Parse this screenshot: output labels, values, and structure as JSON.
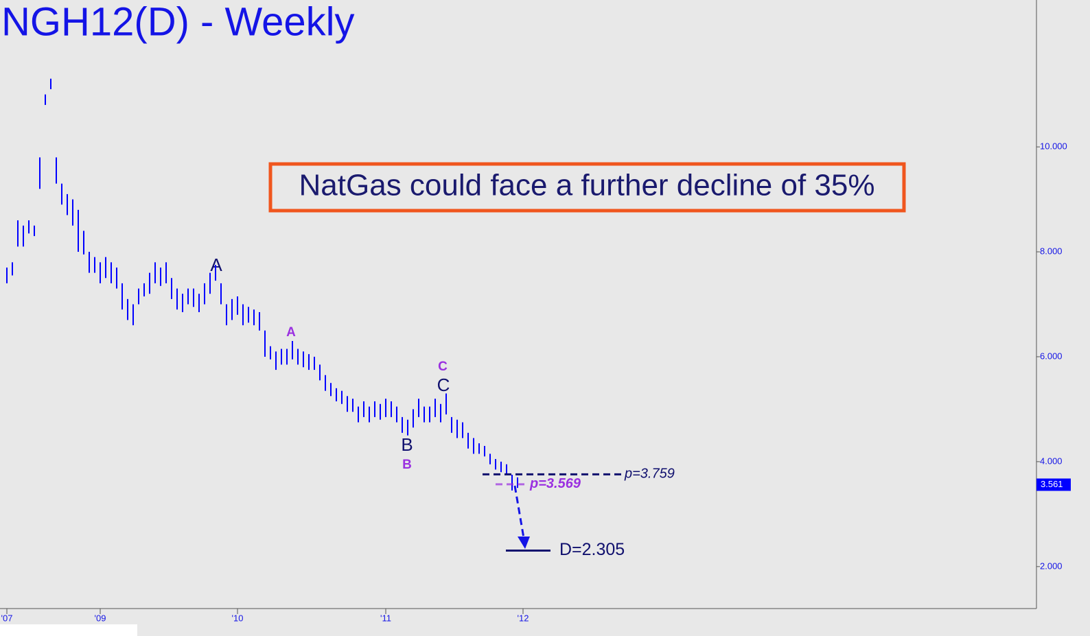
{
  "chart_data": {
    "type": "hilo",
    "title": "NGH12(D) - Weekly",
    "callout": "NatGas could face a further decline of 35%",
    "color": "#0000ff",
    "categories": [
      "'07",
      null,
      null,
      null,
      null,
      null,
      null,
      null,
      null,
      null,
      null,
      null,
      null,
      null,
      null,
      null,
      null,
      "'09",
      null,
      null,
      null,
      null,
      null,
      null,
      null,
      null,
      null,
      null,
      null,
      null,
      null,
      null,
      null,
      null,
      null,
      null,
      null,
      null,
      null,
      null,
      null,
      null,
      "'10",
      null,
      null,
      null,
      null,
      null,
      null,
      null,
      null,
      null,
      null,
      null,
      null,
      null,
      null,
      null,
      null,
      null,
      null,
      null,
      null,
      null,
      null,
      null,
      null,
      null,
      null,
      "'11",
      null,
      null,
      null,
      null,
      null,
      null,
      null,
      null,
      null,
      null,
      null,
      null,
      null,
      null,
      null,
      null,
      null,
      null,
      null,
      null,
      null,
      null,
      null,
      null,
      "'12",
      null
    ],
    "high": [
      7.7,
      7.8,
      8.6,
      8.5,
      8.6,
      8.5,
      9.8,
      11.0,
      11.3,
      9.8,
      9.3,
      9.1,
      9.0,
      8.8,
      8.4,
      8.0,
      7.9,
      7.8,
      7.9,
      7.8,
      7.7,
      7.4,
      7.1,
      7.0,
      7.3,
      7.4,
      7.6,
      7.8,
      7.7,
      7.8,
      7.5,
      7.3,
      7.2,
      7.3,
      7.3,
      7.2,
      7.4,
      7.6,
      7.75,
      7.4,
      7.0,
      7.1,
      7.15,
      7.0,
      6.95,
      6.9,
      6.85,
      6.5,
      6.2,
      6.1,
      6.15,
      6.15,
      6.3,
      6.15,
      6.1,
      6.05,
      6.0,
      5.85,
      5.65,
      5.5,
      5.4,
      5.35,
      5.25,
      5.2,
      5.05,
      5.15,
      5.05,
      5.15,
      5.1,
      5.2,
      5.15,
      5.05,
      4.85,
      4.8,
      5.0,
      5.2,
      5.05,
      5.05,
      5.2,
      5.1,
      5.3,
      4.85,
      4.8,
      4.75,
      4.55,
      4.45,
      4.35,
      4.3,
      4.15,
      4.05,
      4.0,
      3.95,
      3.75,
      3.7,
      null,
      null
    ],
    "low": [
      7.4,
      7.55,
      8.1,
      8.1,
      8.35,
      8.3,
      9.2,
      10.8,
      11.1,
      9.3,
      8.9,
      8.7,
      8.5,
      8.0,
      7.95,
      7.6,
      7.6,
      7.4,
      7.5,
      7.4,
      7.3,
      6.9,
      6.7,
      6.6,
      7.0,
      7.15,
      7.2,
      7.4,
      7.35,
      7.4,
      7.1,
      6.9,
      6.85,
      7.0,
      6.95,
      6.85,
      7.0,
      7.2,
      7.45,
      7.0,
      6.6,
      6.7,
      6.8,
      6.6,
      6.65,
      6.6,
      6.5,
      6.0,
      5.95,
      5.75,
      5.85,
      5.85,
      5.95,
      5.85,
      5.8,
      5.75,
      5.75,
      5.55,
      5.35,
      5.25,
      5.15,
      5.1,
      4.95,
      4.95,
      4.75,
      4.85,
      4.75,
      4.85,
      4.8,
      4.85,
      4.85,
      4.75,
      4.55,
      4.5,
      4.65,
      4.85,
      4.75,
      4.75,
      4.85,
      4.75,
      4.9,
      4.55,
      4.45,
      4.45,
      4.25,
      4.15,
      4.15,
      4.1,
      3.95,
      3.85,
      3.8,
      3.75,
      3.45,
      3.5,
      null,
      null
    ],
    "ylim": [
      1.2,
      12.8
    ],
    "yticks": [
      {
        "value": 2,
        "label": "2.000"
      },
      {
        "value": 4,
        "label": "4.000"
      },
      {
        "value": 6,
        "label": "6.000"
      },
      {
        "value": 8,
        "label": "8.000"
      },
      {
        "value": 10,
        "label": "10.000"
      }
    ],
    "last": {
      "value": 3.561,
      "label": "3.561"
    },
    "levels": [
      {
        "value": 3.759,
        "label": "p=3.759",
        "color": "#10106e",
        "style": "dashed"
      },
      {
        "value": 3.569,
        "label": "p=3.569",
        "color": "#9a30e0",
        "style": "dashed"
      },
      {
        "value": 2.305,
        "label": "D=2.305",
        "color": "#10106e",
        "style": "solid"
      }
    ],
    "wave_labels": [
      "A",
      "A",
      "B",
      "B",
      "C",
      "C"
    ]
  }
}
